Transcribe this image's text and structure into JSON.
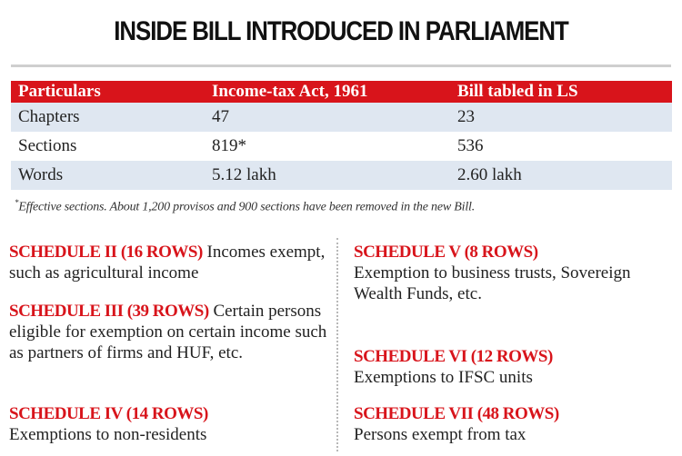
{
  "title": "INSIDE BILL INTRODUCED IN PARLIAMENT",
  "table": {
    "headers": [
      "Particulars",
      "Income-tax Act, 1961",
      "Bill tabled in LS"
    ],
    "rows": [
      [
        "Chapters",
        "47",
        "23"
      ],
      [
        "Sections",
        "819*",
        "536"
      ],
      [
        "Words",
        "5.12 lakh",
        "2.60 lakh"
      ]
    ],
    "colors": {
      "header_bg": "#d8141b",
      "shaded_row_bg": "#dfe7f1"
    }
  },
  "footnote": {
    "marker": "*",
    "text": "Effective sections. About 1,200 provisos and 900 sections have been removed in the new Bill."
  },
  "schedules": {
    "s2": {
      "head": "SCHEDULE II (16 ROWS)",
      "text": "Incomes exempt, such as agricultural income"
    },
    "s3": {
      "head": "SCHEDULE III (39 ROWS)",
      "text": "Certain persons eligible for exemption on certain income such as partners of firms and HUF, etc."
    },
    "s4": {
      "head": "SCHEDULE IV (14 ROWS)",
      "text": "Exemptions to non-residents"
    },
    "s5": {
      "head": "SCHEDULE V (8 ROWS)",
      "text": "Exemption to business trusts, Sovereign Wealth Funds, etc."
    },
    "s6": {
      "head": "SCHEDULE VI (12 ROWS)",
      "text": "Exemptions to IFSC units"
    },
    "s7": {
      "head": "SCHEDULE VII (48 ROWS)",
      "text": "Persons exempt from tax"
    }
  },
  "accent_color": "#d8141b"
}
